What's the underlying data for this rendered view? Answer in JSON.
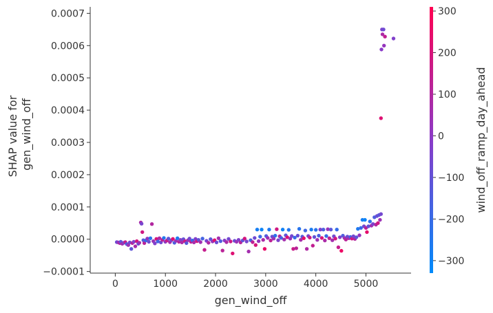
{
  "chart_data": {
    "type": "scatter",
    "xlabel": "gen_wind_off",
    "ylabel_lines": [
      "SHAP value for",
      "gen_wind_off"
    ],
    "xlim": [
      -500,
      5900
    ],
    "ylim": [
      -0.000105,
      0.00072
    ],
    "x_ticks": [
      0,
      1000,
      2000,
      3000,
      4000,
      5000
    ],
    "x_tick_labels": [
      "0",
      "1000",
      "2000",
      "3000",
      "4000",
      "5000"
    ],
    "y_ticks": [
      -0.0001,
      0,
      0.0001,
      0.0002,
      0.0003,
      0.0004,
      0.0005,
      0.0006,
      0.0007
    ],
    "y_tick_labels": [
      "−0.0001",
      "0.0000",
      "0.0001",
      "0.0002",
      "0.0003",
      "0.0004",
      "0.0005",
      "0.0006",
      "0.0007"
    ],
    "grid": false,
    "colorbar": {
      "label": "wind_off_ramp_day_ahead",
      "range": [
        -330,
        310
      ],
      "ticks": [
        -300,
        -200,
        -100,
        0,
        100,
        200,
        300
      ],
      "tick_labels": [
        "−300",
        "−200",
        "−100",
        "0",
        "100",
        "200",
        "300"
      ],
      "color_low": "#008bfb",
      "color_high": "#ff0052"
    },
    "points": [
      {
        "x": 30,
        "y": -9e-06,
        "c": -80
      },
      {
        "x": 60,
        "y": -1e-05,
        "c": 20
      },
      {
        "x": 90,
        "y": -1.2e-05,
        "c": 100
      },
      {
        "x": 110,
        "y": -8e-06,
        "c": -120
      },
      {
        "x": 140,
        "y": -1.4e-05,
        "c": 60
      },
      {
        "x": 170,
        "y": -1.1e-05,
        "c": -40
      },
      {
        "x": 200,
        "y": -9e-06,
        "c": 150
      },
      {
        "x": 230,
        "y": -1.5e-05,
        "c": -160
      },
      {
        "x": 260,
        "y": -1.8e-05,
        "c": 30
      },
      {
        "x": 290,
        "y": -1e-05,
        "c": -60
      },
      {
        "x": 320,
        "y": -3e-05,
        "c": -110
      },
      {
        "x": 340,
        "y": -1.2e-05,
        "c": 110
      },
      {
        "x": 370,
        "y": -8e-06,
        "c": -20
      },
      {
        "x": 400,
        "y": -2.2e-05,
        "c": 70
      },
      {
        "x": 430,
        "y": -6e-06,
        "c": 190
      },
      {
        "x": 460,
        "y": -1.4e-05,
        "c": -90
      },
      {
        "x": 480,
        "y": -1.1e-05,
        "c": 40
      },
      {
        "x": 510,
        "y": 5.2e-05,
        "c": 80
      },
      {
        "x": 525,
        "y": 4.8e-05,
        "c": -50
      },
      {
        "x": 540,
        "y": 2.2e-05,
        "c": 180
      },
      {
        "x": 560,
        "y": -3e-06,
        "c": -140
      },
      {
        "x": 580,
        "y": -1.2e-05,
        "c": 120
      },
      {
        "x": 610,
        "y": -4e-06,
        "c": -200
      },
      {
        "x": 640,
        "y": 2e-06,
        "c": 20
      },
      {
        "x": 670,
        "y": -8e-06,
        "c": -80
      },
      {
        "x": 700,
        "y": 3e-06,
        "c": -240
      },
      {
        "x": 730,
        "y": 4.7e-05,
        "c": 100
      },
      {
        "x": 760,
        "y": -6e-06,
        "c": 40
      },
      {
        "x": 790,
        "y": -1.3e-05,
        "c": -30
      },
      {
        "x": 820,
        "y": 1e-06,
        "c": 200
      },
      {
        "x": 850,
        "y": -7e-06,
        "c": -180
      },
      {
        "x": 880,
        "y": 3e-06,
        "c": 90
      },
      {
        "x": 910,
        "y": -1e-05,
        "c": -70
      },
      {
        "x": 940,
        "y": -2e-06,
        "c": 130
      },
      {
        "x": 970,
        "y": 4e-06,
        "c": -250
      },
      {
        "x": 1000,
        "y": -8e-06,
        "c": 10
      },
      {
        "x": 1030,
        "y": -4e-06,
        "c": 160
      },
      {
        "x": 1060,
        "y": 2e-06,
        "c": -110
      },
      {
        "x": 1090,
        "y": -9e-06,
        "c": 60
      },
      {
        "x": 1120,
        "y": -3e-06,
        "c": -40
      },
      {
        "x": 1150,
        "y": 1e-06,
        "c": 220
      },
      {
        "x": 1180,
        "y": -1.1e-05,
        "c": -150
      },
      {
        "x": 1210,
        "y": -5e-06,
        "c": 30
      },
      {
        "x": 1240,
        "y": 3e-06,
        "c": -260
      },
      {
        "x": 1270,
        "y": -8e-06,
        "c": 110
      },
      {
        "x": 1300,
        "y": -2e-06,
        "c": -20
      },
      {
        "x": 1330,
        "y": -1e-05,
        "c": 80
      },
      {
        "x": 1360,
        "y": 0.0,
        "c": -90
      },
      {
        "x": 1390,
        "y": -6e-06,
        "c": 170
      },
      {
        "x": 1420,
        "y": -1.2e-05,
        "c": -130
      },
      {
        "x": 1450,
        "y": -3e-06,
        "c": 40
      },
      {
        "x": 1480,
        "y": 2e-06,
        "c": -60
      },
      {
        "x": 1510,
        "y": -8e-06,
        "c": 140
      },
      {
        "x": 1540,
        "y": -4e-06,
        "c": -200
      },
      {
        "x": 1570,
        "y": -1e-05,
        "c": 70
      },
      {
        "x": 1600,
        "y": 1e-06,
        "c": -30
      },
      {
        "x": 1630,
        "y": -6e-06,
        "c": 190
      },
      {
        "x": 1660,
        "y": -2e-06,
        "c": -100
      },
      {
        "x": 1700,
        "y": -9e-06,
        "c": 50
      },
      {
        "x": 1740,
        "y": 2e-06,
        "c": -170
      },
      {
        "x": 1780,
        "y": -3.3e-05,
        "c": 150
      },
      {
        "x": 1820,
        "y": -5e-06,
        "c": -50
      },
      {
        "x": 1860,
        "y": -1.1e-05,
        "c": 90
      },
      {
        "x": 1900,
        "y": 0.0,
        "c": -120
      },
      {
        "x": 1940,
        "y": -7e-06,
        "c": 20
      },
      {
        "x": 1980,
        "y": -3e-06,
        "c": 230
      },
      {
        "x": 2020,
        "y": -1e-05,
        "c": -80
      },
      {
        "x": 2060,
        "y": 3e-06,
        "c": 60
      },
      {
        "x": 2100,
        "y": -6e-06,
        "c": -140
      },
      {
        "x": 2140,
        "y": -3.5e-05,
        "c": 120
      },
      {
        "x": 2180,
        "y": -4e-06,
        "c": -20
      },
      {
        "x": 2220,
        "y": -9e-06,
        "c": 80
      },
      {
        "x": 2260,
        "y": 1e-06,
        "c": -60
      },
      {
        "x": 2300,
        "y": -7e-06,
        "c": 170
      },
      {
        "x": 2340,
        "y": -4.4e-05,
        "c": 220
      },
      {
        "x": 2380,
        "y": -5e-06,
        "c": -90
      },
      {
        "x": 2420,
        "y": -8e-06,
        "c": 40
      },
      {
        "x": 2460,
        "y": -2e-06,
        "c": -30
      },
      {
        "x": 2500,
        "y": -1e-05,
        "c": 110
      },
      {
        "x": 2540,
        "y": -4e-06,
        "c": -110
      },
      {
        "x": 2580,
        "y": 2e-06,
        "c": 190
      },
      {
        "x": 2620,
        "y": -7e-06,
        "c": -50
      },
      {
        "x": 2660,
        "y": -3.8e-05,
        "c": 60
      },
      {
        "x": 2700,
        "y": -3e-06,
        "c": -160
      },
      {
        "x": 2740,
        "y": -9e-06,
        "c": 130
      },
      {
        "x": 2780,
        "y": 4e-06,
        "c": -70
      },
      {
        "x": 2800,
        "y": -1.8e-05,
        "c": 200
      },
      {
        "x": 2830,
        "y": 3e-05,
        "c": -280
      },
      {
        "x": 2860,
        "y": -6e-06,
        "c": 20
      },
      {
        "x": 2890,
        "y": 8e-06,
        "c": -190
      },
      {
        "x": 2920,
        "y": 3e-05,
        "c": -300
      },
      {
        "x": 2950,
        "y": -2e-06,
        "c": 80
      },
      {
        "x": 2980,
        "y": -3e-05,
        "c": 250
      },
      {
        "x": 3010,
        "y": 1e-05,
        "c": -140
      },
      {
        "x": 3040,
        "y": 4e-06,
        "c": 50
      },
      {
        "x": 3070,
        "y": 3e-05,
        "c": -260
      },
      {
        "x": 3100,
        "y": -4e-06,
        "c": 130
      },
      {
        "x": 3130,
        "y": 8e-06,
        "c": -80
      },
      {
        "x": 3160,
        "y": 2e-06,
        "c": 30
      },
      {
        "x": 3190,
        "y": 1.1e-05,
        "c": -220
      },
      {
        "x": 3220,
        "y": 3.1e-05,
        "c": 180
      },
      {
        "x": 3250,
        "y": -3e-06,
        "c": -40
      },
      {
        "x": 3280,
        "y": 9e-06,
        "c": 100
      },
      {
        "x": 3310,
        "y": 4e-06,
        "c": -170
      },
      {
        "x": 3340,
        "y": 3e-05,
        "c": -290
      },
      {
        "x": 3370,
        "y": -1e-06,
        "c": 60
      },
      {
        "x": 3400,
        "y": 1.2e-05,
        "c": -120
      },
      {
        "x": 3430,
        "y": 6e-06,
        "c": 210
      },
      {
        "x": 3460,
        "y": 2.9e-05,
        "c": -250
      },
      {
        "x": 3490,
        "y": 2e-06,
        "c": 40
      },
      {
        "x": 3520,
        "y": 1e-05,
        "c": -60
      },
      {
        "x": 3550,
        "y": -3e-05,
        "c": 160
      },
      {
        "x": 3580,
        "y": 5e-06,
        "c": -200
      },
      {
        "x": 3610,
        "y": -2.8e-05,
        "c": 120
      },
      {
        "x": 3640,
        "y": 1.1e-05,
        "c": -90
      },
      {
        "x": 3670,
        "y": 3.2e-05,
        "c": -240
      },
      {
        "x": 3700,
        "y": -2e-06,
        "c": 70
      },
      {
        "x": 3730,
        "y": 8e-06,
        "c": -130
      },
      {
        "x": 3760,
        "y": 3e-06,
        "c": 240
      },
      {
        "x": 3790,
        "y": 2.7e-05,
        "c": -180
      },
      {
        "x": 3820,
        "y": -3e-05,
        "c": 90
      },
      {
        "x": 3850,
        "y": 1e-05,
        "c": -50
      },
      {
        "x": 3880,
        "y": 5e-06,
        "c": 170
      },
      {
        "x": 3910,
        "y": 3e-05,
        "c": -270
      },
      {
        "x": 3940,
        "y": -2e-05,
        "c": 140
      },
      {
        "x": 3970,
        "y": 7e-06,
        "c": -100
      },
      {
        "x": 4000,
        "y": 2.9e-05,
        "c": -230
      },
      {
        "x": 4030,
        "y": -2e-06,
        "c": 50
      },
      {
        "x": 4060,
        "y": 1.1e-05,
        "c": -160
      },
      {
        "x": 4090,
        "y": 3e-05,
        "c": -40
      },
      {
        "x": 4120,
        "y": 4e-06,
        "c": 200
      },
      {
        "x": 4150,
        "y": 3e-05,
        "c": -150
      },
      {
        "x": 4180,
        "y": -4e-06,
        "c": 80
      },
      {
        "x": 4210,
        "y": 1e-05,
        "c": -200
      },
      {
        "x": 4240,
        "y": 3.1e-05,
        "c": 30
      },
      {
        "x": 4270,
        "y": 3e-06,
        "c": 130
      },
      {
        "x": 4300,
        "y": 3e-05,
        "c": -120
      },
      {
        "x": 4330,
        "y": -3e-06,
        "c": 60
      },
      {
        "x": 4360,
        "y": 9e-06,
        "c": -70
      },
      {
        "x": 4390,
        "y": 2e-06,
        "c": 190
      },
      {
        "x": 4420,
        "y": 3e-05,
        "c": -210
      },
      {
        "x": 4450,
        "y": -2.5e-05,
        "c": 150
      },
      {
        "x": 4480,
        "y": 6e-06,
        "c": -30
      },
      {
        "x": 4510,
        "y": -3.6e-05,
        "c": 260
      },
      {
        "x": 4540,
        "y": 1.1e-05,
        "c": -140
      },
      {
        "x": 4570,
        "y": 4e-06,
        "c": 40
      },
      {
        "x": 4600,
        "y": -1e-06,
        "c": 120
      },
      {
        "x": 4630,
        "y": 8e-06,
        "c": -90
      },
      {
        "x": 4660,
        "y": 3e-06,
        "c": 70
      },
      {
        "x": 4690,
        "y": 7e-06,
        "c": -170
      },
      {
        "x": 4720,
        "y": 2e-06,
        "c": 180
      },
      {
        "x": 4750,
        "y": 9e-06,
        "c": -60
      },
      {
        "x": 4780,
        "y": 1e-06,
        "c": 100
      },
      {
        "x": 4810,
        "y": 6e-06,
        "c": -110
      },
      {
        "x": 4840,
        "y": 3.2e-05,
        "c": -260
      },
      {
        "x": 4870,
        "y": 1.2e-05,
        "c": 20
      },
      {
        "x": 4900,
        "y": 3.5e-05,
        "c": -200
      },
      {
        "x": 4930,
        "y": 6e-05,
        "c": -280
      },
      {
        "x": 4960,
        "y": 4e-05,
        "c": -60
      },
      {
        "x": 4980,
        "y": 6e-05,
        "c": -300
      },
      {
        "x": 5000,
        "y": 3.5e-05,
        "c": 120
      },
      {
        "x": 5020,
        "y": 2.2e-05,
        "c": 240
      },
      {
        "x": 5050,
        "y": 4e-05,
        "c": -100
      },
      {
        "x": 5080,
        "y": 5.5e-05,
        "c": -220
      },
      {
        "x": 5110,
        "y": 4.2e-05,
        "c": 60
      },
      {
        "x": 5140,
        "y": 4.7e-05,
        "c": -40
      },
      {
        "x": 5170,
        "y": 6.8e-05,
        "c": -150
      },
      {
        "x": 5200,
        "y": 4.5e-05,
        "c": 100
      },
      {
        "x": 5220,
        "y": 7.2e-05,
        "c": -80
      },
      {
        "x": 5240,
        "y": 5e-05,
        "c": 180
      },
      {
        "x": 5260,
        "y": 7.5e-05,
        "c": -120
      },
      {
        "x": 5280,
        "y": 6e-05,
        "c": 40
      },
      {
        "x": 5300,
        "y": 7.8e-05,
        "c": -60
      },
      {
        "x": 5300,
        "y": 0.000375,
        "c": 220
      },
      {
        "x": 5310,
        "y": 0.000588,
        "c": -10
      },
      {
        "x": 5320,
        "y": 0.00065,
        "c": -40
      },
      {
        "x": 5330,
        "y": 0.000635,
        "c": 80
      },
      {
        "x": 5350,
        "y": 0.00065,
        "c": -70
      },
      {
        "x": 5360,
        "y": 0.0006,
        "c": 20
      },
      {
        "x": 5380,
        "y": 0.000628,
        "c": 140
      },
      {
        "x": 5550,
        "y": 0.000622,
        "c": -30
      }
    ]
  }
}
